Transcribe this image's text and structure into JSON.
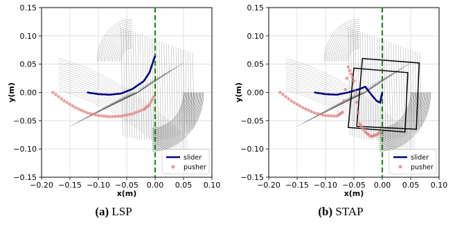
{
  "chart_data": [
    {
      "type": "line",
      "caption_tag": "(a)",
      "caption_text": "LSP",
      "xlabel": "x(m)",
      "ylabel": "y(m)",
      "xlim": [
        -0.2,
        0.1
      ],
      "ylim": [
        -0.15,
        0.15
      ],
      "xticks": [
        "−0.20",
        "−0.15",
        "−0.10",
        "−0.05",
        "0.00",
        "0.05",
        "0.10"
      ],
      "yticks": [
        "0.15",
        "0.10",
        "0.05",
        "0.00",
        "−0.05",
        "−0.10",
        "−0.15"
      ],
      "grid": true,
      "legend": {
        "placement": "lower-right",
        "entries": [
          "slider",
          "pusher"
        ]
      },
      "reference_line": {
        "x": 0.0,
        "style": "dashed",
        "color": "#1a8a1a"
      },
      "series": [
        {
          "name": "slider",
          "color": "#00007f",
          "x": [
            -0.12,
            -0.1,
            -0.08,
            -0.06,
            -0.04,
            -0.02,
            -0.01,
            0.0
          ],
          "y": [
            0.0,
            -0.003,
            -0.004,
            -0.002,
            0.006,
            0.02,
            0.035,
            0.065
          ]
        },
        {
          "name": "pusher",
          "color": "#e08080",
          "x": [
            -0.18,
            -0.16,
            -0.14,
            -0.12,
            -0.1,
            -0.08,
            -0.06,
            -0.04,
            -0.02,
            -0.01,
            0.0
          ],
          "y": [
            0.0,
            -0.015,
            -0.027,
            -0.036,
            -0.041,
            -0.043,
            -0.042,
            -0.038,
            -0.03,
            -0.022,
            -0.003
          ]
        }
      ],
      "footprint_color": "#333333"
    },
    {
      "type": "line",
      "caption_tag": "(b)",
      "caption_text": "STAP",
      "xlabel": "x(m)",
      "ylabel": "y(m)",
      "xlim": [
        -0.2,
        0.1
      ],
      "ylim": [
        -0.15,
        0.15
      ],
      "xticks": [
        "−0.20",
        "−0.15",
        "−0.10",
        "−0.05",
        "0.00",
        "0.05",
        "0.10"
      ],
      "yticks": [
        "0.15",
        "0.10",
        "0.05",
        "0.00",
        "−0.05",
        "−0.10",
        "−0.15"
      ],
      "grid": true,
      "legend": {
        "placement": "lower-right",
        "entries": [
          "slider",
          "pusher"
        ]
      },
      "reference_line": {
        "x": 0.0,
        "style": "dashed",
        "color": "#1a8a1a"
      },
      "series": [
        {
          "name": "slider",
          "color": "#00007f",
          "x": [
            -0.12,
            -0.1,
            -0.08,
            -0.06,
            -0.04,
            -0.03,
            -0.02,
            -0.01,
            -0.004,
            0.0
          ],
          "y": [
            0.0,
            -0.003,
            -0.004,
            0.0,
            0.006,
            0.01,
            -0.003,
            -0.015,
            -0.018,
            0.0
          ]
        },
        {
          "name": "pusher",
          "color": "#e08080",
          "x": [
            -0.18,
            -0.16,
            -0.14,
            -0.12,
            -0.1,
            -0.08,
            -0.07,
            -0.06,
            -0.05,
            -0.04,
            -0.03,
            -0.02,
            -0.01,
            0.0
          ],
          "y": [
            0.0,
            -0.015,
            -0.027,
            -0.036,
            -0.041,
            -0.042,
            -0.035,
            0.045,
            0.02,
            -0.055,
            -0.07,
            -0.078,
            -0.075,
            -0.068
          ]
        }
      ],
      "footprint_color": "#333333"
    }
  ]
}
